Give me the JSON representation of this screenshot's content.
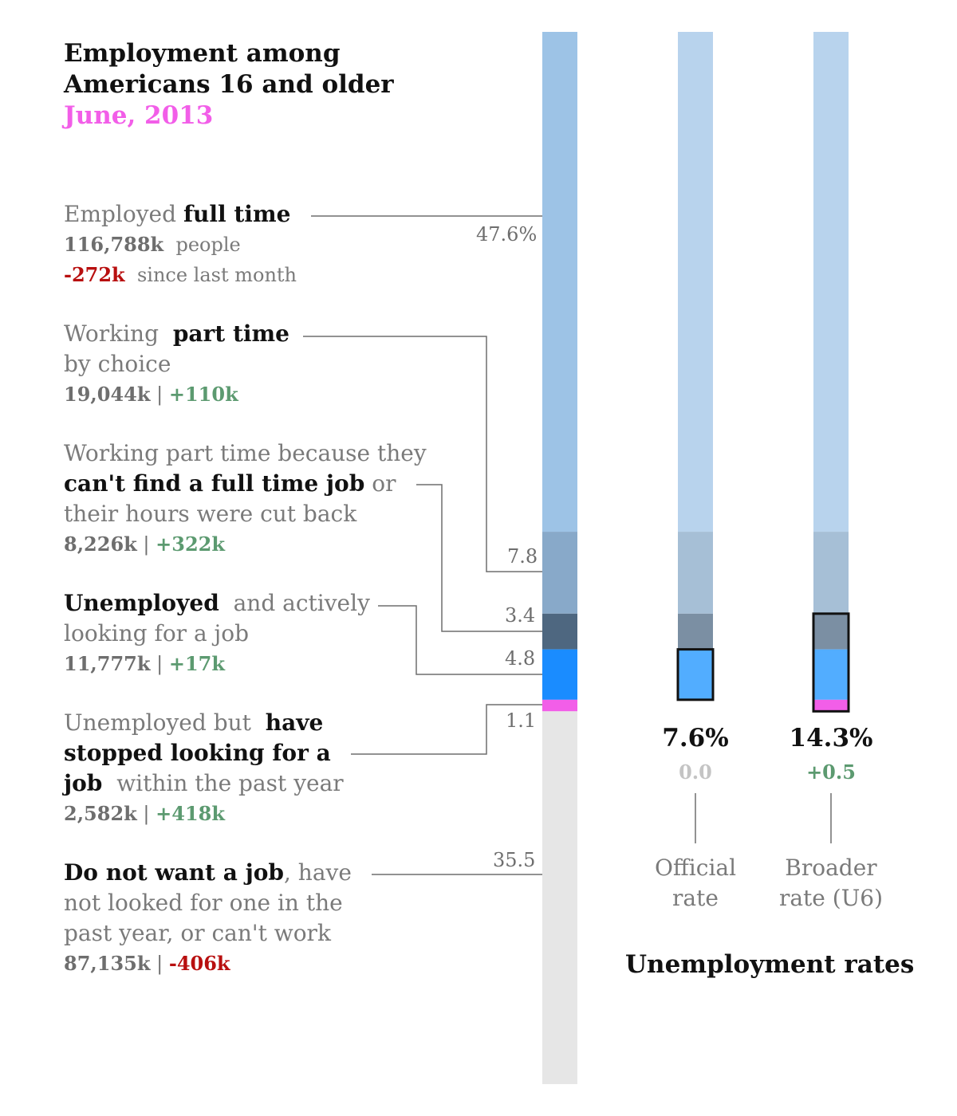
{
  "title": {
    "line1": "Employment among",
    "line2": "Americans 16 and older",
    "date": "June, 2013"
  },
  "categories": [
    {
      "id": "full_time",
      "pre": "Employed",
      "bold": "full time",
      "people": "116,788k",
      "people_suffix": "people",
      "change": "-272k",
      "change_suffix": "since last month",
      "pct_label": "47.6%"
    },
    {
      "id": "part_time_choice",
      "pre": "Working",
      "bold": "part time",
      "line2": "by choice",
      "people": "19,044k",
      "change": "+110k",
      "pct_label": "7.8"
    },
    {
      "id": "part_time_econ",
      "line1": "Working part time because they",
      "bold": "can't find a full time job",
      "post": "or",
      "line3": "their hours were cut back",
      "people": "8,226k",
      "change": "+322k",
      "pct_label": "3.4"
    },
    {
      "id": "unemployed",
      "bold": "Unemployed",
      "post": "and actively",
      "line2": "looking for a job",
      "people": "11,777k",
      "change": "+17k",
      "pct_label": "4.8"
    },
    {
      "id": "discouraged",
      "pre": "Unemployed but",
      "bold1": "have",
      "bold2": "stopped looking for a",
      "bold3": "job",
      "post": "within the past year",
      "people": "2,582k",
      "change": "+418k",
      "pct_label": "1.1"
    },
    {
      "id": "not_in_lf",
      "bold": "Do not want a job",
      "post": ", have",
      "line2": "not looked for one in the",
      "line3": "past year, or can't work",
      "people": "87,135k",
      "change": "-406k",
      "pct_label": "35.5"
    }
  ],
  "rates_title": "Unemployment rates",
  "official": {
    "value": "7.6%",
    "change": "0.0",
    "label1": "Official",
    "label2": "rate"
  },
  "broader": {
    "value": "14.3%",
    "change": "+0.5",
    "label1": "Broader",
    "label2": "rate (U6)"
  },
  "colors": {
    "full_time": "#9dc3e6",
    "part_time_choice": "#88a9c9",
    "part_time_econ": "#4e6780",
    "unemployed": "#1a8cff",
    "discouraged": "#f25ee8",
    "not_in_lf": "#e6e6e6",
    "rate_bar_top": "#b8d3ed",
    "rate_bar_mid": "#a6bfd6",
    "rate_bar_econ": "#7b8fa3",
    "rate_bar_unemp": "#52adff",
    "positive": "#5c9a70",
    "negative": "#b80f0f",
    "accent": "#f25ee8"
  },
  "chart_data": {
    "type": "bar",
    "title": "Employment among Americans 16 and older",
    "subtitle": "June, 2013",
    "categories": [
      "Employed full time",
      "Working part time by choice",
      "Working part time because they can't find a full time job or their hours were cut back",
      "Unemployed and actively looking for a job",
      "Unemployed but have stopped looking for a job within the past year",
      "Do not want a job, have not looked for one in the past year, or can't work"
    ],
    "values": [
      47.6,
      7.8,
      3.4,
      4.8,
      1.1,
      35.5
    ],
    "people_k": [
      116788,
      19044,
      8226,
      11777,
      2582,
      87135
    ],
    "change_k": [
      -272,
      110,
      322,
      17,
      418,
      -406
    ],
    "stacked": true,
    "rates": [
      {
        "name": "Official rate",
        "value": 7.6,
        "change": 0.0
      },
      {
        "name": "Broader rate (U6)",
        "value": 14.3,
        "change": 0.5
      }
    ]
  }
}
